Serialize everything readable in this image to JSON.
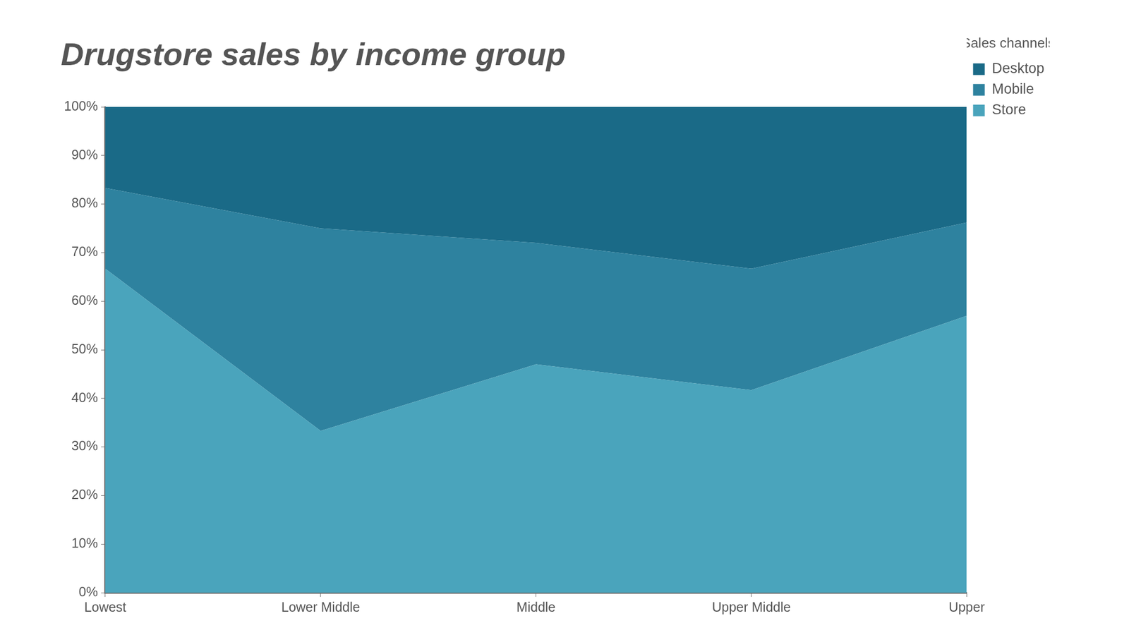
{
  "chart_data": {
    "type": "area",
    "title": "Drugstore sales by income group",
    "legend_title": "Sales channels",
    "categories": [
      "Lowest",
      "Lower Middle",
      "Middle",
      "Upper Middle",
      "Upper"
    ],
    "series": [
      {
        "name": "Desktop",
        "color": "#1a6a87",
        "values": [
          16.7,
          25,
          28,
          33.3,
          23.8
        ]
      },
      {
        "name": "Mobile",
        "color": "#2e829f",
        "values": [
          16.6,
          41.7,
          25,
          25,
          19.2
        ]
      },
      {
        "name": "Store",
        "color": "#4aa4bc",
        "values": [
          66.7,
          33.3,
          47,
          41.7,
          57
        ]
      }
    ],
    "stacked": true,
    "ylim": [
      0,
      100
    ],
    "yticks": [
      {
        "value": 0,
        "label": "0%"
      },
      {
        "value": 10,
        "label": "10%"
      },
      {
        "value": 20,
        "label": "20%"
      },
      {
        "value": 30,
        "label": "30%"
      },
      {
        "value": 40,
        "label": "40%"
      },
      {
        "value": 50,
        "label": "50%"
      },
      {
        "value": 60,
        "label": "60%"
      },
      {
        "value": 70,
        "label": "70%"
      },
      {
        "value": 80,
        "label": "80%"
      },
      {
        "value": 90,
        "label": "90%"
      },
      {
        "value": 100,
        "label": "100%"
      }
    ],
    "grid": false,
    "legend": "right"
  }
}
